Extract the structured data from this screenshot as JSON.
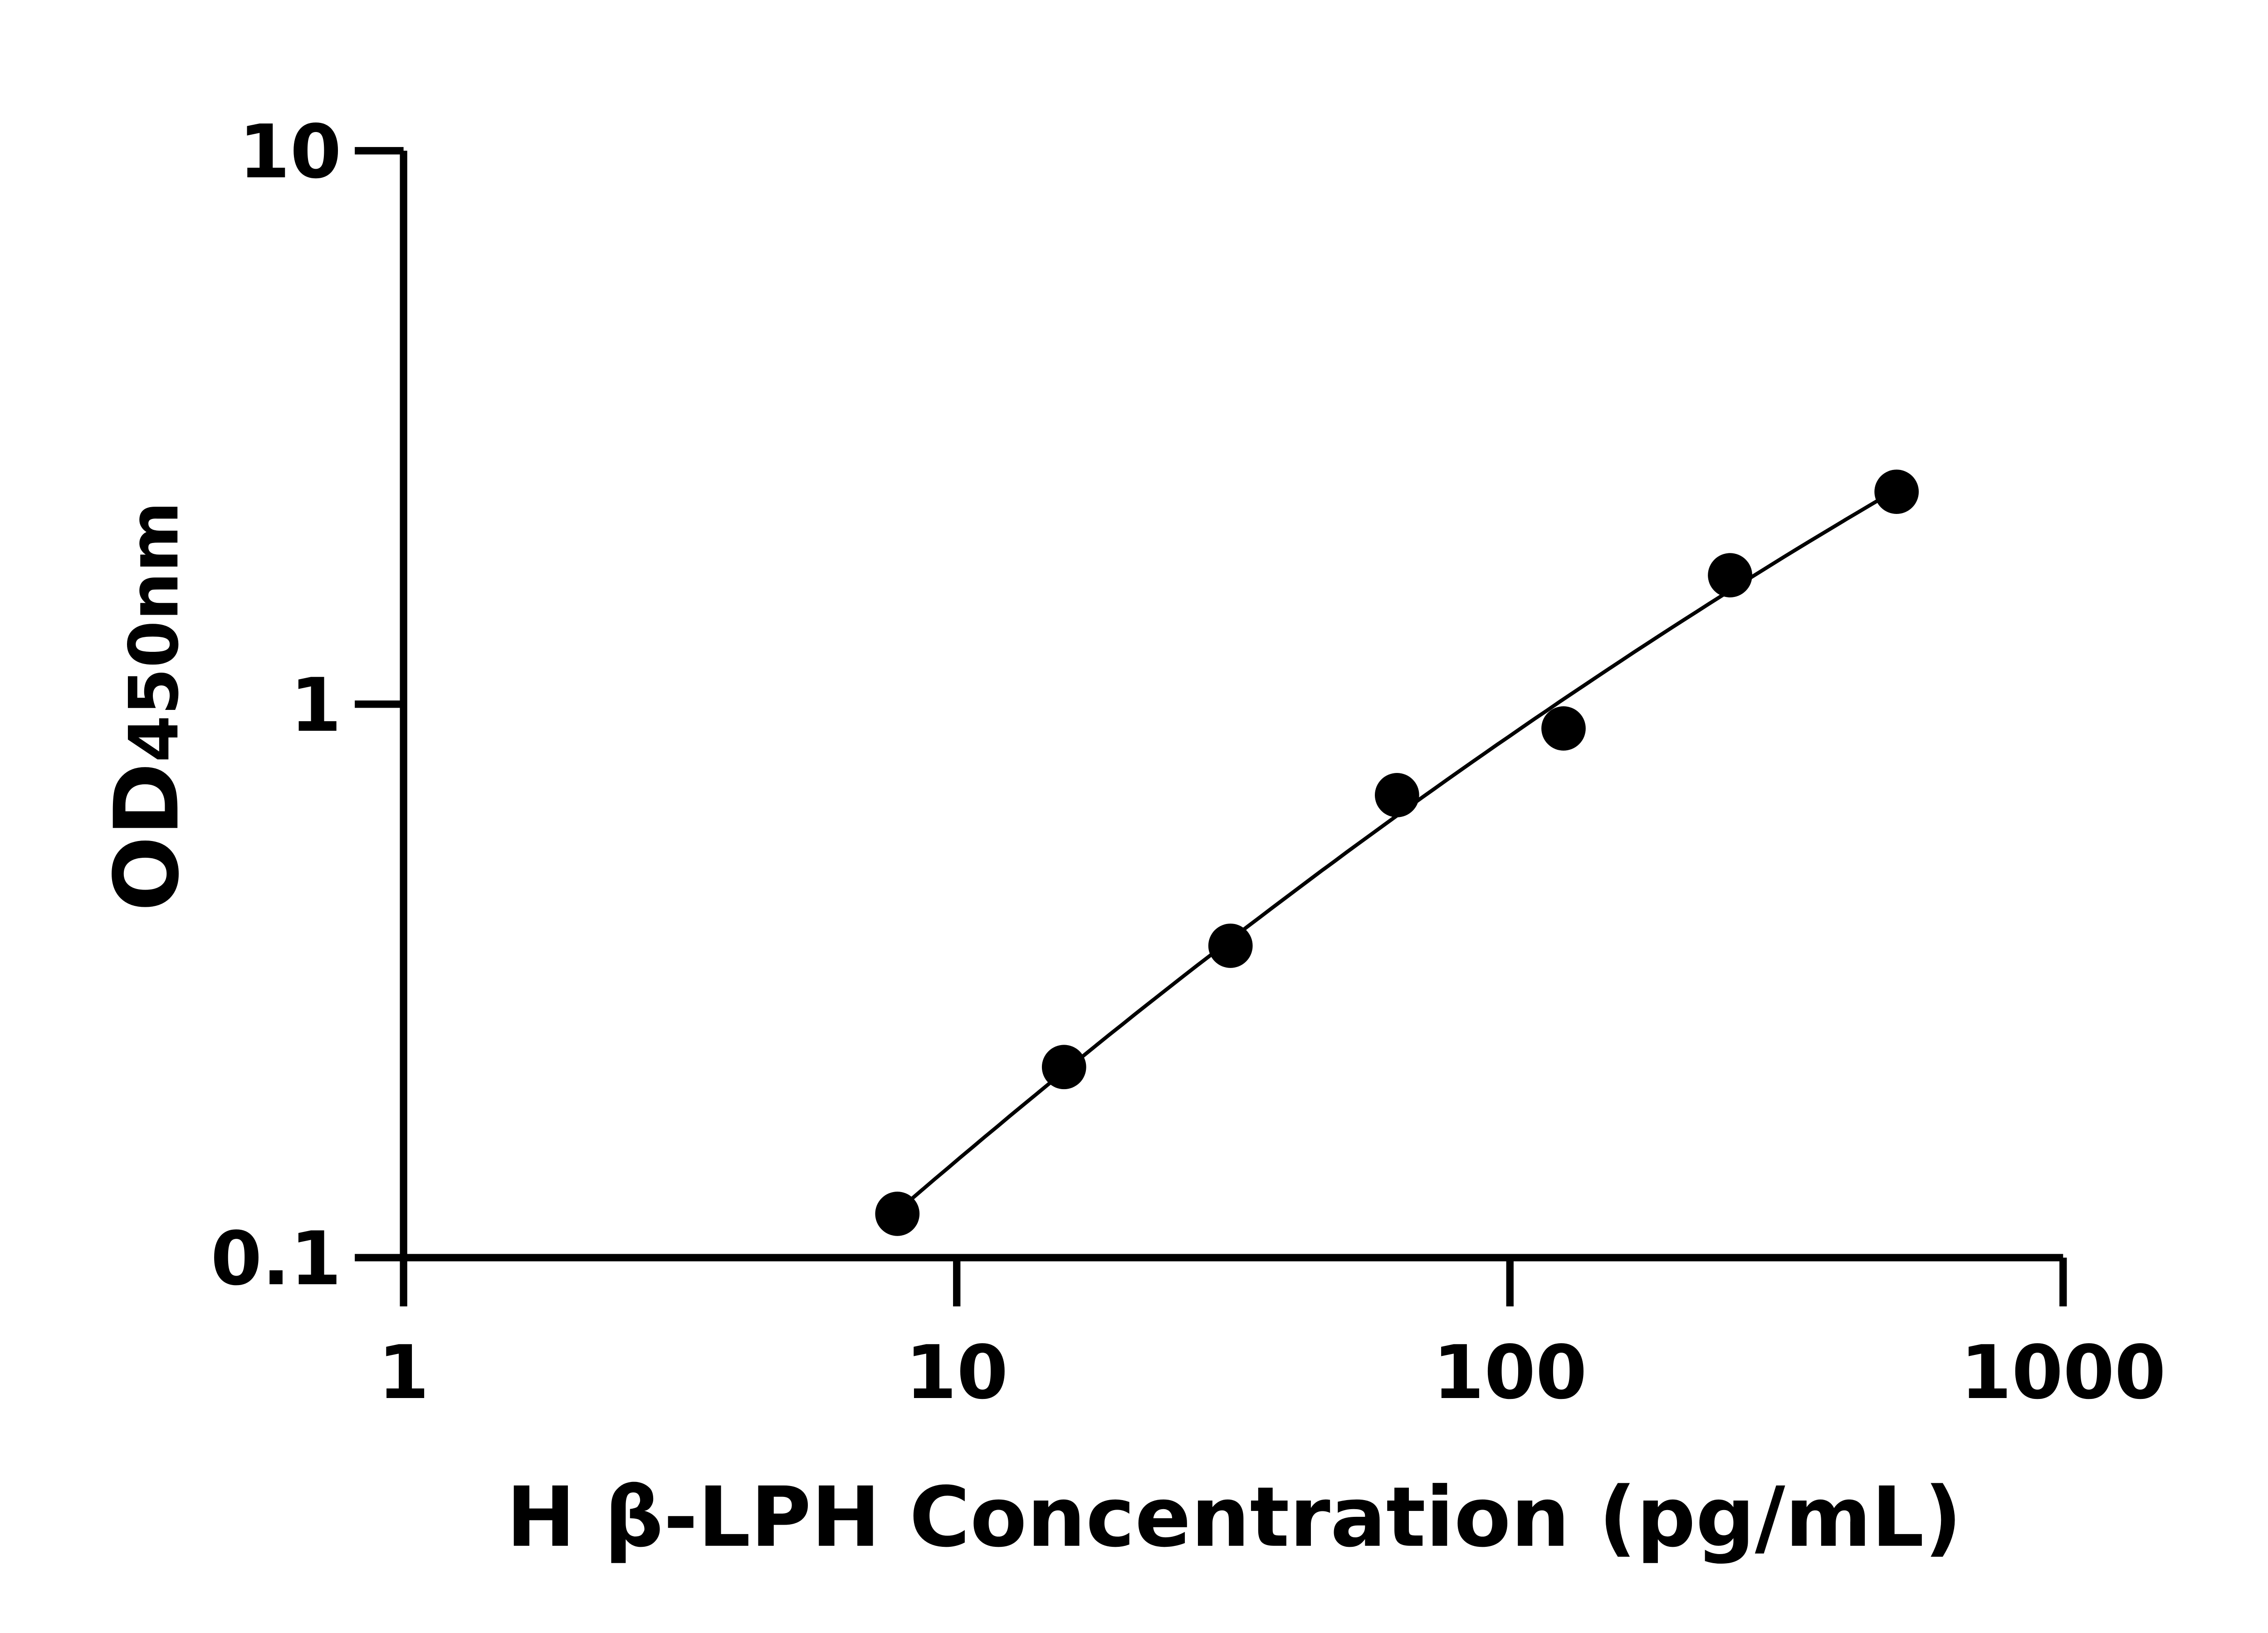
{
  "chart_data": {
    "type": "scatter",
    "xlabel": "H β-LPH Concentration (pg/mL)",
    "ylabel_main": "OD",
    "ylabel_sub": "450nm",
    "x_scale": "log",
    "y_scale": "log",
    "xlim": [
      1,
      1000
    ],
    "ylim": [
      0.1,
      10
    ],
    "x_ticks": [
      "1",
      "10",
      "100",
      "1000"
    ],
    "y_ticks": [
      "0.1",
      "1",
      "10"
    ],
    "grid": false,
    "legend": "none",
    "marker_color": "#000000",
    "fit_curve": true,
    "x": [
      7.81,
      15.63,
      31.25,
      62.5,
      125,
      250,
      500
    ],
    "y": [
      0.12,
      0.221,
      0.366,
      0.685,
      0.904,
      1.71,
      2.42
    ]
  }
}
